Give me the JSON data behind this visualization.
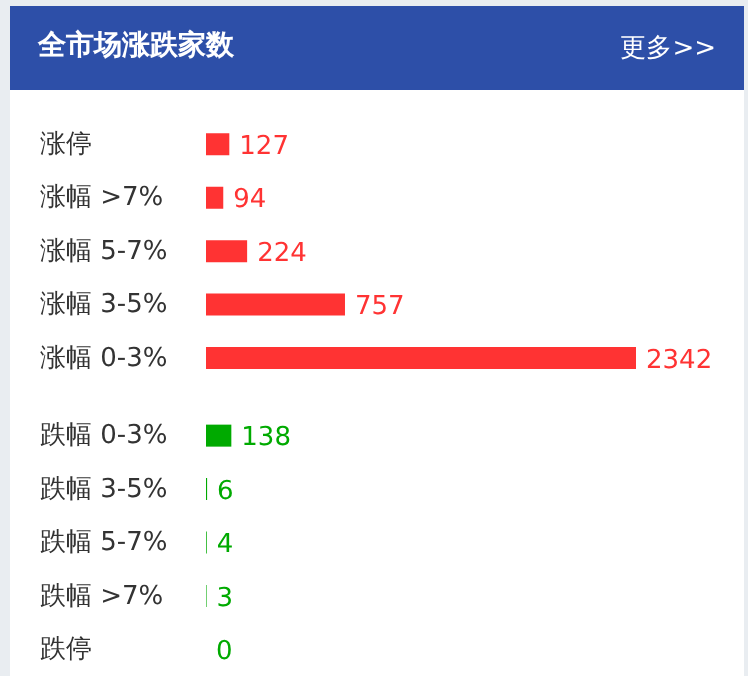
{
  "chart_data": {
    "type": "bar",
    "orientation": "horizontal",
    "title": "全市场涨跌家数",
    "annotations": [
      "更多>>"
    ],
    "categories": [
      "涨停",
      "涨幅 >7%",
      "涨幅 5-7%",
      "涨幅 3-5%",
      "涨幅 0-3%",
      "跌幅 0-3%",
      "跌幅 3-5%",
      "跌幅 5-7%",
      "跌幅 >7%",
      "跌停"
    ],
    "values": [
      127,
      94,
      224,
      757,
      2342,
      138,
      6,
      4,
      3,
      0
    ],
    "colors": [
      "#ff3333",
      "#ff3333",
      "#ff3333",
      "#ff3333",
      "#ff3333",
      "#00aa00",
      "#00aa00",
      "#00aa00",
      "#00aa00",
      "#00aa00"
    ],
    "data_labels": true
  }
}
